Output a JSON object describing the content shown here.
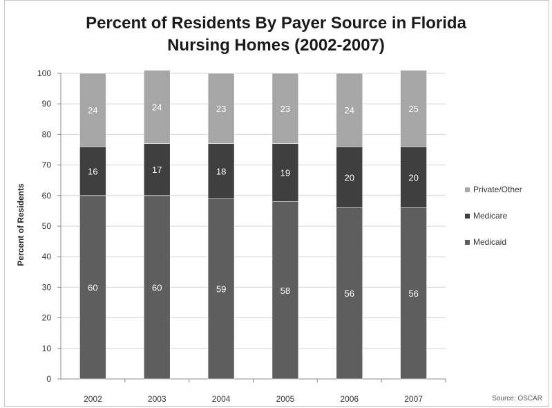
{
  "chart_data": {
    "type": "bar",
    "stacked": true,
    "title": "Percent of Residents By Payer Source in Florida Nursing Homes (2002-2007)",
    "title_lines": [
      "Percent of Residents By Payer Source in Florida",
      "Nursing Homes (2002-2007)"
    ],
    "ylabel": "Percent of Residents",
    "xlabel": "",
    "ylim": [
      0,
      100
    ],
    "yticks": [
      0,
      10,
      20,
      30,
      40,
      50,
      60,
      70,
      80,
      90,
      100
    ],
    "grid": true,
    "legend_position": "right",
    "categories": [
      "2002",
      "2003",
      "2004",
      "2005",
      "2006",
      "2007"
    ],
    "series": [
      {
        "name": "Medicaid",
        "color": "#5e5e5e",
        "values": [
          60,
          60,
          59,
          58,
          56,
          56
        ]
      },
      {
        "name": "Medicare",
        "color": "#3f3f3f",
        "values": [
          16,
          17,
          18,
          19,
          20,
          20
        ]
      },
      {
        "name": "Private/Other",
        "color": "#a6a6a6",
        "values": [
          24,
          24,
          23,
          23,
          24,
          25
        ]
      }
    ],
    "legend_order": [
      "Private/Other",
      "Medicare",
      "Medicaid"
    ],
    "source": "Source: OSCAR"
  }
}
